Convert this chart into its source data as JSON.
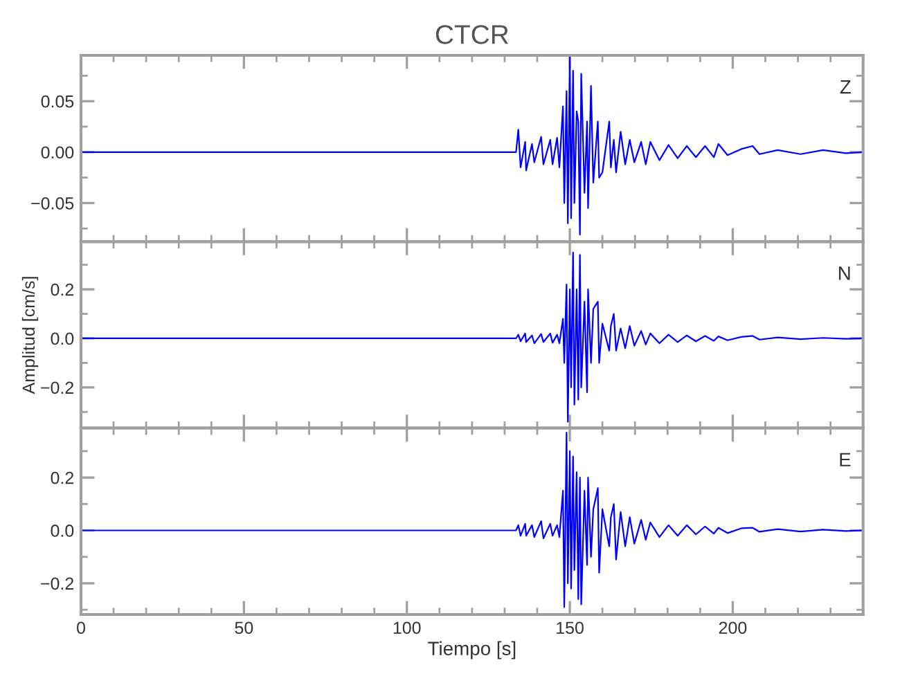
{
  "chart_data": [
    {
      "type": "line",
      "title": "CTCR",
      "annotations": [
        "Z"
      ],
      "tick_labels": "y",
      "grid": false,
      "marker": "none",
      "line_style": "solid",
      "x": [
        0,
        133.5,
        134.2,
        134.9,
        136.3,
        136.6,
        138.4,
        139.1,
        141.2,
        141.9,
        144.0,
        144.7,
        146.1,
        146.8,
        147.9,
        148.3,
        149.0,
        149.4,
        150.0,
        150.4,
        151.0,
        151.4,
        152.1,
        152.6,
        153.1,
        153.5,
        154.5,
        155.3,
        155.6,
        156.5,
        157.2,
        158.6,
        159.0,
        160.0,
        162.1,
        162.6,
        163.5,
        164.2,
        165.6,
        167.0,
        168.4,
        169.8,
        171.9,
        173.3,
        174.7,
        177.5,
        180.3,
        183.1,
        185.9,
        188.7,
        191.5,
        194.2,
        195.6,
        198.4,
        202.6,
        206.1,
        208.2,
        213.8,
        220.8,
        227.7,
        234.7,
        240
      ],
      "series": [
        {
          "color": "#0000ff",
          "values": [
            0,
            0,
            0.022,
            -0.015,
            0.01,
            -0.018,
            0.008,
            -0.01,
            0.015,
            -0.012,
            0.012,
            -0.012,
            0.014,
            -0.015,
            0.045,
            -0.05,
            0.06,
            -0.07,
            0.094,
            -0.065,
            0.08,
            -0.05,
            0.04,
            0.03,
            -0.081,
            0.077,
            -0.04,
            0.03,
            -0.055,
            0.065,
            -0.03,
            0.03,
            -0.025,
            -0.02,
            0.03,
            -0.015,
            0.012,
            -0.02,
            0.02,
            -0.012,
            0.012,
            -0.01,
            0.01,
            -0.012,
            0.01,
            -0.008,
            0.007,
            -0.006,
            0.006,
            -0.005,
            0.006,
            -0.005,
            0.008,
            -0.003,
            0.003,
            0.006,
            -0.002,
            0.002,
            -0.002,
            0.002,
            -0.001,
            0
          ]
        }
      ],
      "xlim": [
        0,
        240
      ],
      "xticks": [
        0,
        50,
        100,
        150,
        200
      ],
      "ylim": [
        -0.088,
        0.095
      ],
      "yticks": [
        {
          "value": -0.05,
          "label": "−0.05"
        },
        {
          "value": 0,
          "label": "0.00"
        },
        {
          "value": 0.05,
          "label": "0.05"
        }
      ]
    },
    {
      "type": "line",
      "ylabel": "Amplitud [cm/s]",
      "annotations": [
        "N"
      ],
      "tick_labels": "y",
      "grid": false,
      "marker": "none",
      "line_style": "solid",
      "x": [
        0,
        133.5,
        134.2,
        134.9,
        136.3,
        136.6,
        138.4,
        139.1,
        141.2,
        141.9,
        144.0,
        144.7,
        146.1,
        146.8,
        147.9,
        148.3,
        149.0,
        149.4,
        150.0,
        150.4,
        151.0,
        151.4,
        152.1,
        152.6,
        153.1,
        153.5,
        154.5,
        155.3,
        155.6,
        156.5,
        157.2,
        158.6,
        159.0,
        160.0,
        162.1,
        162.6,
        163.5,
        164.2,
        165.6,
        167.0,
        168.4,
        169.8,
        171.9,
        173.3,
        174.7,
        177.5,
        180.3,
        183.1,
        185.9,
        188.7,
        191.5,
        194.2,
        195.6,
        198.4,
        202.6,
        206.1,
        208.2,
        213.8,
        220.8,
        227.7,
        234.7,
        240
      ],
      "series": [
        {
          "color": "#0000ff",
          "values": [
            0,
            0,
            0.015,
            -0.012,
            0.02,
            -0.015,
            0.012,
            -0.02,
            0.018,
            -0.015,
            0.02,
            -0.018,
            0.015,
            -0.02,
            0.08,
            -0.1,
            0.22,
            -0.34,
            0.2,
            -0.2,
            0.35,
            -0.27,
            0.2,
            -0.25,
            0.34,
            -0.2,
            0.15,
            -0.22,
            0.2,
            -0.1,
            0.12,
            0.15,
            -0.1,
            0.06,
            -0.05,
            0.05,
            0.1,
            -0.05,
            0.04,
            -0.04,
            0.05,
            -0.03,
            0.03,
            -0.025,
            0.02,
            -0.02,
            0.015,
            -0.015,
            0.012,
            -0.012,
            0.01,
            -0.01,
            0.008,
            -0.008,
            0.006,
            0.01,
            -0.005,
            0.004,
            -0.003,
            0.002,
            -0.002,
            0
          ]
        }
      ],
      "xlim": [
        0,
        240
      ],
      "xticks": [
        0,
        50,
        100,
        150,
        200
      ],
      "ylim": [
        -0.366,
        0.394
      ],
      "yticks": [
        {
          "value": -0.2,
          "label": "−0.2"
        },
        {
          "value": 0,
          "label": "0.0"
        },
        {
          "value": 0.2,
          "label": "0.2"
        }
      ]
    },
    {
      "type": "line",
      "xlabel": "Tiempo [s]",
      "annotations": [
        "E"
      ],
      "grid": false,
      "marker": "none",
      "line_style": "solid",
      "x": [
        0,
        133.5,
        134.2,
        134.9,
        136.3,
        136.6,
        138.4,
        139.1,
        141.2,
        141.9,
        144.0,
        144.7,
        146.1,
        146.8,
        147.9,
        148.3,
        149.0,
        149.4,
        150.0,
        150.4,
        151.0,
        151.4,
        152.1,
        152.6,
        153.1,
        153.5,
        154.5,
        155.3,
        155.6,
        156.5,
        157.2,
        158.6,
        159.0,
        160.0,
        162.1,
        162.6,
        163.5,
        164.2,
        165.6,
        167.0,
        168.4,
        169.8,
        171.9,
        173.3,
        174.7,
        177.5,
        180.3,
        183.1,
        185.9,
        188.7,
        191.5,
        194.2,
        195.6,
        198.4,
        202.6,
        206.1,
        208.2,
        213.8,
        220.8,
        227.7,
        234.7,
        240
      ],
      "series": [
        {
          "color": "#0000ff",
          "values": [
            0,
            0,
            0.02,
            -0.02,
            0.025,
            -0.02,
            0.02,
            -0.025,
            0.035,
            -0.03,
            0.025,
            -0.02,
            0.02,
            -0.025,
            0.15,
            -0.29,
            0.37,
            -0.2,
            0.3,
            -0.22,
            0.28,
            -0.15,
            0.22,
            -0.26,
            0.2,
            -0.28,
            0.15,
            -0.13,
            0.2,
            -0.1,
            0.08,
            0.16,
            -0.16,
            0.08,
            -0.06,
            0.05,
            0.1,
            -0.11,
            0.07,
            -0.06,
            0.05,
            -0.05,
            0.04,
            -0.035,
            0.03,
            -0.025,
            0.02,
            -0.02,
            0.02,
            -0.015,
            0.015,
            -0.012,
            0.01,
            -0.01,
            0.008,
            0.01,
            -0.005,
            0.005,
            -0.004,
            0.003,
            -0.002,
            0
          ]
        }
      ],
      "xlim": [
        0,
        240
      ],
      "xticks": [
        0,
        50,
        100,
        150,
        200
      ],
      "ylim": [
        -0.318,
        0.387
      ],
      "yticks": [
        {
          "value": -0.2,
          "label": "−0.2"
        },
        {
          "value": 0,
          "label": "0.0"
        },
        {
          "value": 0.2,
          "label": "0.2"
        }
      ]
    }
  ]
}
